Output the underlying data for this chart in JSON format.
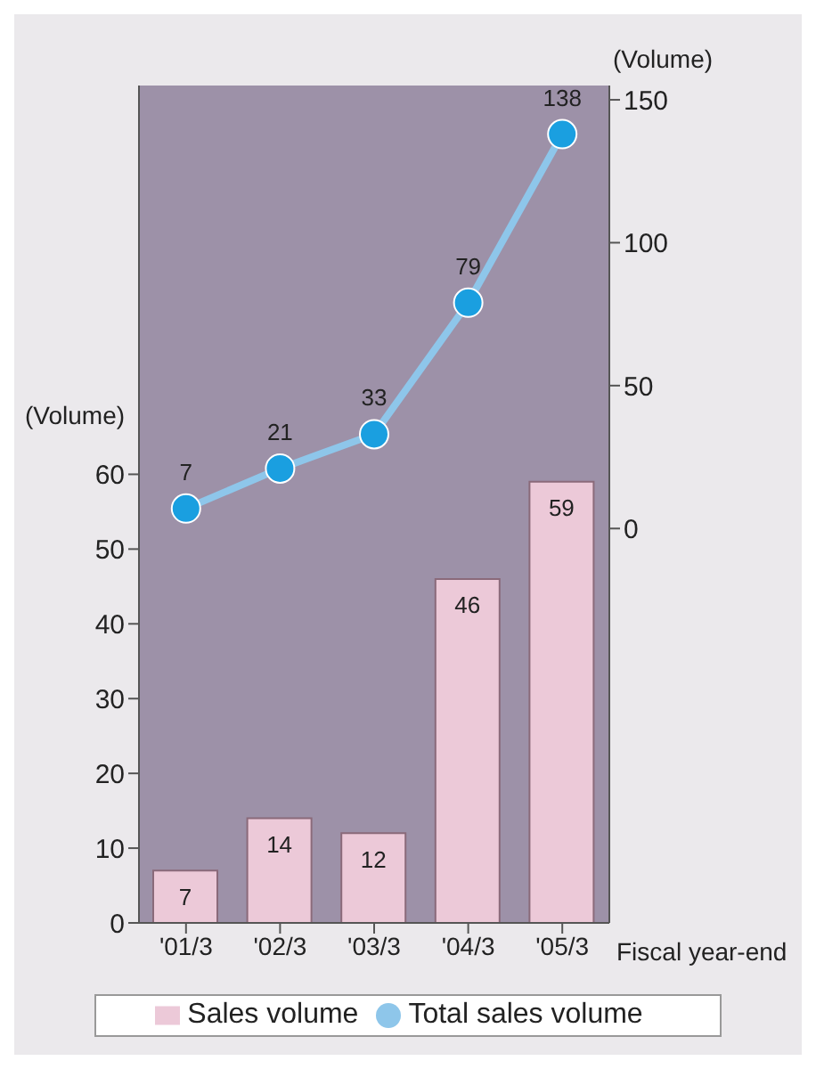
{
  "chart_data": {
    "type": "bar",
    "xlabel": "Fiscal year-end",
    "ylabel": "(Volume)",
    "y2label": "(Volume)",
    "categories": [
      "'01/3",
      "'02/3",
      "'03/3",
      "'04/3",
      "'05/3"
    ],
    "series": [
      {
        "name": "Sales volume",
        "color": "#ecc9d8",
        "values": [
          7,
          14,
          12,
          46,
          59
        ]
      },
      {
        "name": "Total sales volume",
        "type": "line",
        "axis": "y2",
        "color": "#8ec6ea",
        "values": [
          7,
          21,
          33,
          79,
          138
        ]
      }
    ],
    "ylim": [
      0,
      112
    ],
    "yticks": [
      0,
      10,
      20,
      30,
      40,
      50,
      60
    ],
    "y2lim": [
      -138,
      155
    ],
    "y2ticks": [
      0,
      50,
      100,
      150
    ],
    "data_labels": true,
    "grid": false,
    "legend": "bottom",
    "marker": "circle"
  }
}
